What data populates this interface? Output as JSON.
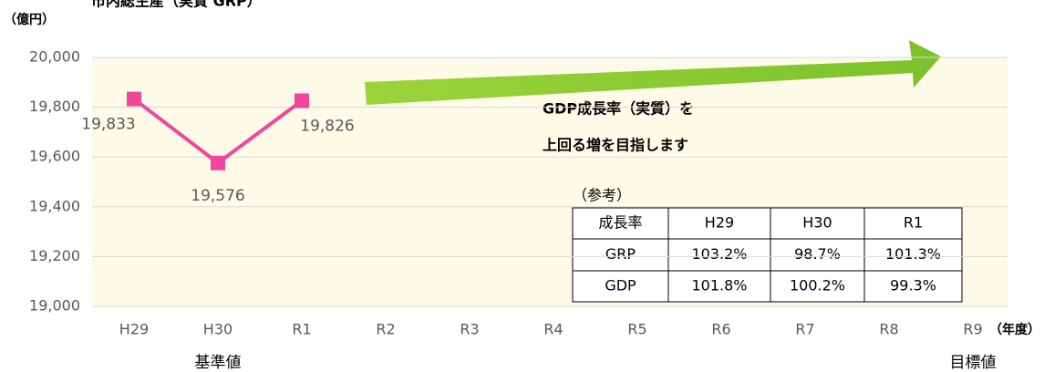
{
  "chart_data": {
    "type": "line",
    "title": "市内総生産（実質 GRP）",
    "y_unit": "（億円）",
    "x_unit": "（年度）",
    "categories": [
      "H29",
      "H30",
      "R1",
      "R2",
      "R3",
      "R4",
      "R5",
      "R6",
      "R7",
      "R8",
      "R9"
    ],
    "values": [
      19833,
      19576,
      19826,
      null,
      null,
      null,
      null,
      null,
      null,
      null,
      null
    ],
    "value_labels": [
      "19,833",
      "19,576",
      "19,826",
      null,
      null,
      null,
      null,
      null,
      null,
      null,
      null
    ],
    "color": "#f0469b",
    "ylim": [
      19000,
      20000
    ],
    "yticks": [
      {
        "value": 19000,
        "label": "19,000"
      },
      {
        "value": 19200,
        "label": "19,200"
      },
      {
        "value": 19400,
        "label": "19,400"
      },
      {
        "value": 19600,
        "label": "19,600"
      },
      {
        "value": 19800,
        "label": "19,800"
      },
      {
        "value": 20000,
        "label": "20,000"
      }
    ],
    "grid": true,
    "category_notes": [
      {
        "index": 1,
        "text": "基準値"
      },
      {
        "index": 10,
        "text": "目標値"
      }
    ],
    "annotation_lines": [
      "GDP成長率（実質）を",
      "上回る増を目指します"
    ]
  },
  "reference_table": {
    "title": "（参考）",
    "header": [
      "成長率",
      "H29",
      "H30",
      "R1"
    ],
    "rows": [
      [
        "GRP",
        "103.2%",
        "98.7%",
        "101.3%"
      ],
      [
        "GDP",
        "101.8%",
        "100.2%",
        "99.3%"
      ]
    ]
  }
}
